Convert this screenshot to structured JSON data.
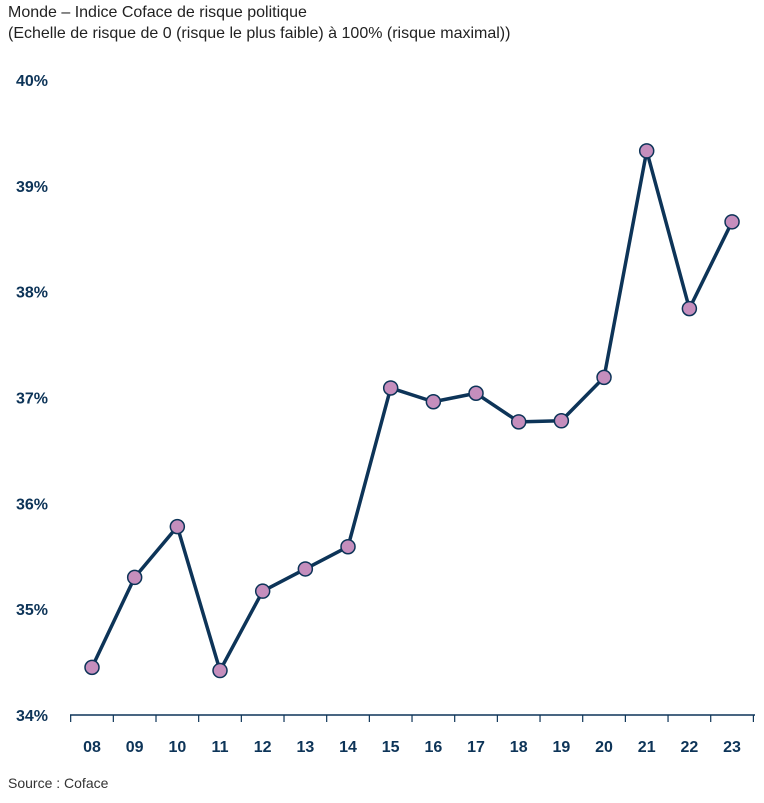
{
  "title_line1": "Monde – Indice Coface de risque politique",
  "title_line2": "(Echelle de risque de 0 (risque le plus faible) à 100% (risque maximal))",
  "source": "Source : Coface",
  "colors": {
    "line": "#0d3458",
    "marker": "#c58ebd",
    "text": "#0d3458"
  },
  "chart_data": {
    "type": "line",
    "title": "Monde – Indice Coface de risque politique",
    "subtitle": "(Echelle de risque de 0 (risque le plus faible) à 100% (risque maximal))",
    "xlabel": "",
    "ylabel": "",
    "categories": [
      "08",
      "09",
      "10",
      "11",
      "12",
      "13",
      "14",
      "15",
      "16",
      "17",
      "18",
      "19",
      "20",
      "21",
      "22",
      "23"
    ],
    "values": [
      34.45,
      35.3,
      35.78,
      34.42,
      35.17,
      35.38,
      35.59,
      37.09,
      36.96,
      37.04,
      36.77,
      36.78,
      37.19,
      39.33,
      37.84,
      38.66
    ],
    "ylim": [
      34,
      40
    ],
    "yticks": [
      "34%",
      "35%",
      "36%",
      "37%",
      "38%",
      "39%",
      "40%"
    ],
    "grid": false
  }
}
